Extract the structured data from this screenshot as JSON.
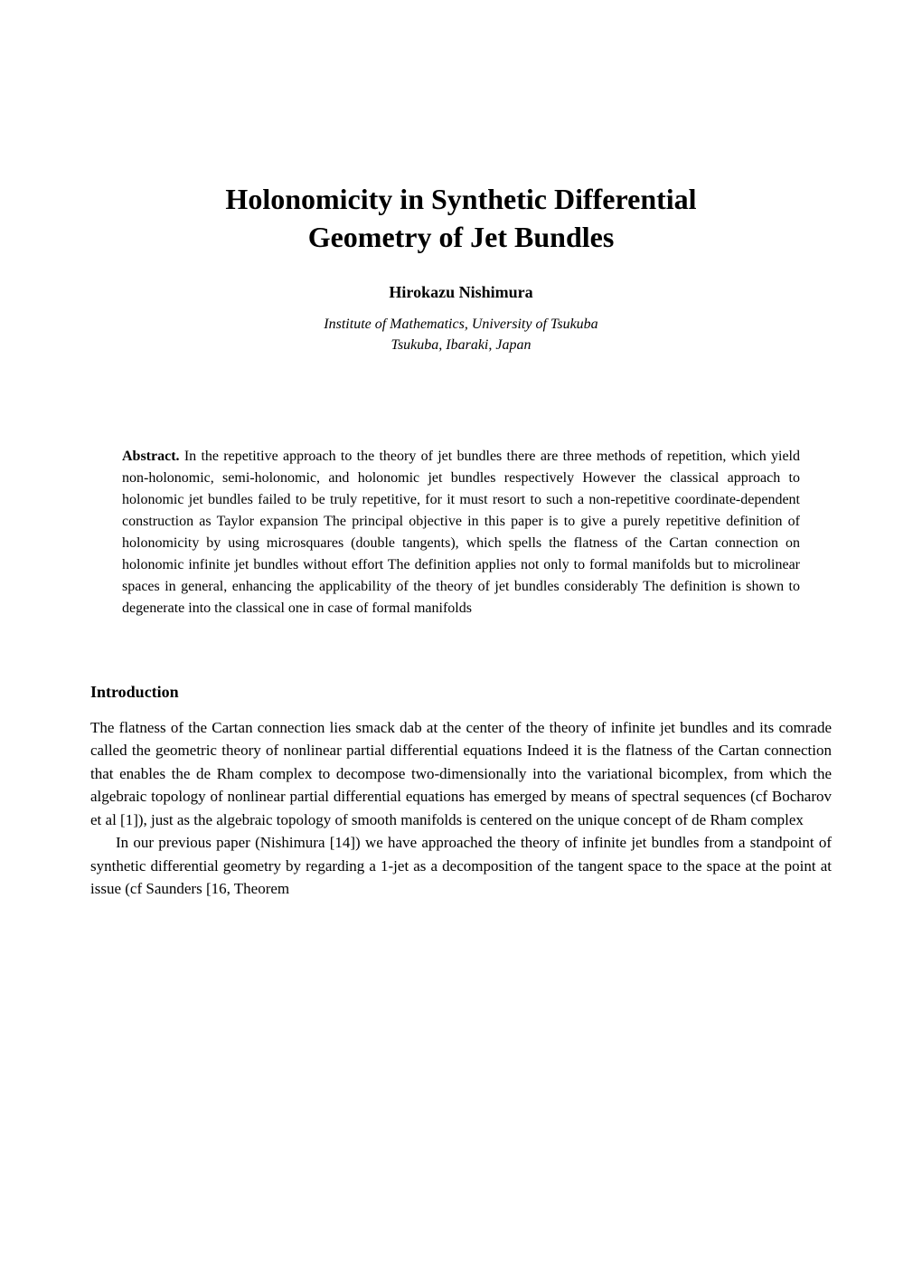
{
  "title_line1": "Holonomicity in Synthetic Differential",
  "title_line2": "Geometry of Jet Bundles",
  "author": "Hirokazu Nishimura",
  "affiliation_line1": "Institute of Mathematics, University of Tsukuba",
  "affiliation_line2": "Tsukuba, Ibaraki, Japan",
  "abstract_label": "Abstract.",
  "abstract_text": " In the repetitive approach to the theory of jet bundles there are three methods of repetition, which yield non-holonomic, semi-holonomic, and holonomic jet bundles respectively  However the classical approach to holonomic jet bundles failed to be truly repetitive, for it must resort to such a non-repetitive coordinate-dependent construction as Taylor expansion  The principal objective in this paper is to give a purely repetitive definition of holonomicity by using microsquares (double tangents), which spells the flatness of the Cartan connection on holonomic infinite jet bundles without effort  The definition applies not only to formal manifolds but to microlinear spaces in general, enhancing the applicability of the theory of jet bundles considerably  The definition is shown to degenerate into the classical one in case of formal manifolds",
  "section_heading": "Introduction",
  "intro_para1": "The flatness of the Cartan connection lies smack dab at the center of the theory of infinite jet bundles and its comrade called the geometric theory of nonlinear partial differential equations  Indeed it is the flatness of the Cartan connection that enables the de Rham complex to decompose two-dimensionally into the variational bicomplex, from which the algebraic topology of nonlinear partial differential equations has emerged by means of spectral sequences (cf  Bocharov et al  [1]), just as the algebraic topology of smooth manifolds is centered on the unique concept of de Rham complex",
  "intro_para2": "In our previous paper (Nishimura [14]) we have approached the theory of infinite jet bundles from a standpoint of synthetic differential geometry by regarding a 1-jet as a decomposition of the tangent space to the space at the point at issue (cf  Saunders [16, Theorem"
}
